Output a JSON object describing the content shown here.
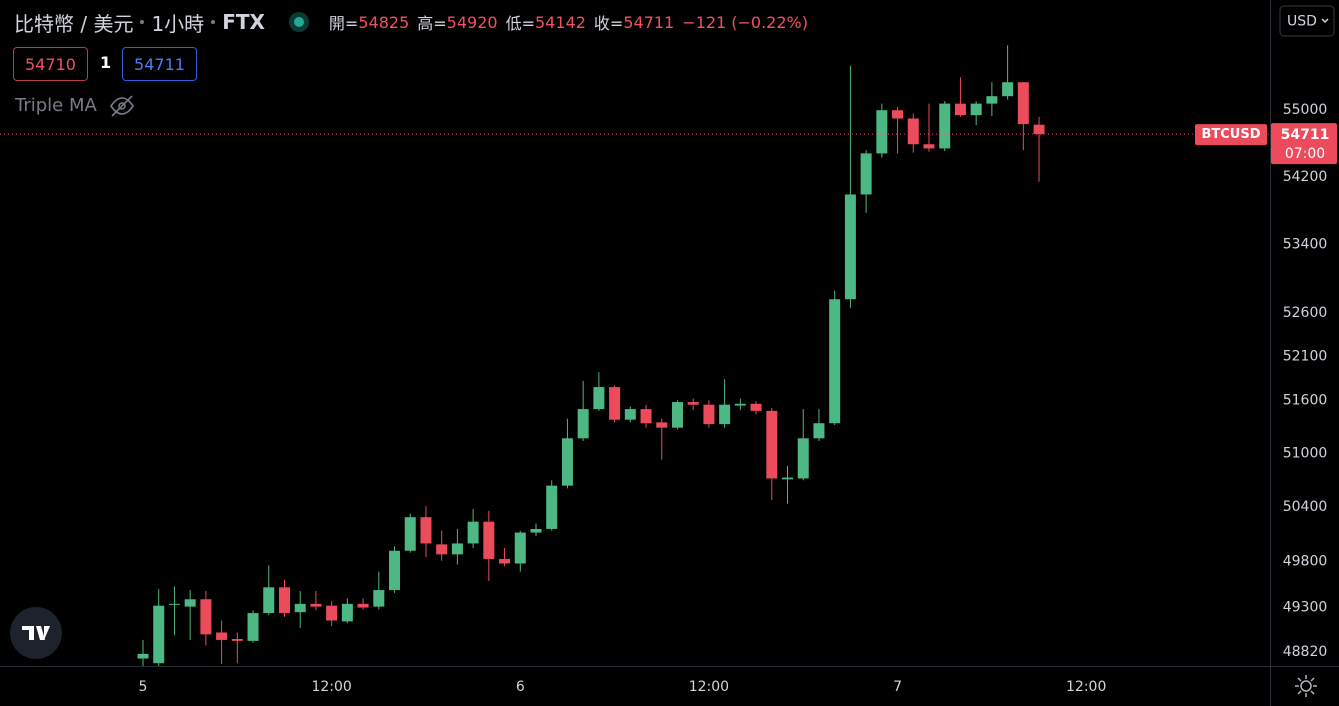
{
  "header": {
    "symbol": "比特幣 / 美元",
    "interval": "1小時",
    "exchange": "FTX",
    "open_label": "開=",
    "high_label": "高=",
    "low_label": "低=",
    "close_label": "收=",
    "change": "−121 (−0.22%)"
  },
  "order_bar": {
    "sell": "54710",
    "spread": "1",
    "buy": "54711"
  },
  "indicator": "Triple MA",
  "currency": "USD",
  "chart_data": {
    "type": "candlestick",
    "symbol": "BTCUSD",
    "countdown": "07:00",
    "log_scale": true,
    "grid": false,
    "up_color": "#4db883",
    "down_color": "#ec4b5c",
    "categories": [
      "5",
      null,
      null,
      null,
      null,
      null,
      null,
      null,
      null,
      null,
      null,
      null,
      "12:00",
      null,
      null,
      null,
      null,
      null,
      null,
      null,
      null,
      null,
      null,
      null,
      "6",
      null,
      null,
      null,
      null,
      null,
      null,
      null,
      null,
      null,
      null,
      null,
      "12:00",
      null,
      null,
      null,
      null,
      null,
      null,
      null,
      null,
      null,
      null,
      null,
      "7",
      null,
      null,
      null,
      null,
      null,
      null,
      null,
      null,
      null,
      null,
      null,
      "12:00",
      null,
      null,
      null,
      null,
      null,
      null,
      null,
      null,
      null,
      null,
      null
    ],
    "open": [
      48750,
      48700,
      49330,
      49310,
      49390,
      49030,
      48960,
      48940,
      49240,
      49520,
      49250,
      49340,
      49320,
      49150,
      49340,
      49310,
      49490,
      49920,
      50290,
      49990,
      49880,
      50000,
      50240,
      49830,
      49780,
      50120,
      50160,
      50640,
      51170,
      51500,
      51750,
      51380,
      51500,
      51350,
      51290,
      51580,
      51550,
      51330,
      51540,
      51560,
      51480,
      50710,
      50720,
      51170,
      51340,
      52760,
      53990,
      54480,
      55000,
      54900,
      54590,
      54540,
      55080,
      54940,
      55080,
      55170,
      55340,
      54825,
      null,
      null,
      null,
      null,
      null,
      null,
      null,
      null,
      null,
      null,
      null,
      null,
      null,
      null
    ],
    "high": [
      48950,
      49500,
      49530,
      49490,
      49480,
      49160,
      49030,
      49270,
      49760,
      49600,
      49480,
      49480,
      49370,
      49400,
      49400,
      49690,
      49970,
      50330,
      50410,
      50140,
      50160,
      50380,
      50360,
      49950,
      50140,
      50220,
      50700,
      51390,
      51820,
      51920,
      51770,
      51530,
      51550,
      51390,
      51600,
      51620,
      51600,
      51840,
      51620,
      51590,
      51510,
      50860,
      51500,
      51500,
      52860,
      55540,
      54520,
      55080,
      55040,
      54960,
      55080,
      55110,
      55400,
      55110,
      55340,
      55790,
      55340,
      54920,
      null,
      null,
      null,
      null,
      null,
      null,
      null,
      null,
      null,
      null,
      null,
      null,
      null,
      null
    ],
    "low": [
      48670,
      48650,
      49000,
      48950,
      48890,
      48690,
      48700,
      48920,
      49220,
      49200,
      49080,
      49270,
      49100,
      49130,
      49280,
      49280,
      49460,
      49900,
      49850,
      49810,
      49770,
      49950,
      49590,
      49750,
      49690,
      50080,
      50140,
      50610,
      51140,
      51480,
      51350,
      51350,
      51290,
      50930,
      51270,
      51490,
      51290,
      51290,
      51490,
      51440,
      50480,
      50440,
      50700,
      51140,
      51320,
      52660,
      53770,
      54430,
      54480,
      54490,
      54500,
      54510,
      54920,
      54820,
      54930,
      55130,
      54520,
      54142,
      null,
      null,
      null,
      null,
      null,
      null,
      null,
      null,
      null,
      null,
      null,
      null,
      null,
      null
    ],
    "close": [
      48800,
      49320,
      49340,
      49390,
      49010,
      48950,
      48940,
      49240,
      49520,
      49240,
      49340,
      49310,
      49160,
      49340,
      49300,
      49490,
      49920,
      50290,
      50000,
      49880,
      50000,
      50240,
      49830,
      49780,
      50120,
      50160,
      50640,
      51170,
      51500,
      51750,
      51380,
      51500,
      51340,
      51290,
      51580,
      51550,
      51330,
      51550,
      51560,
      51480,
      50720,
      50730,
      51170,
      51340,
      52760,
      53990,
      54480,
      55000,
      54900,
      54590,
      54540,
      55080,
      54940,
      55080,
      55170,
      55340,
      54832,
      54711,
      null,
      null,
      null,
      null,
      null,
      null,
      null,
      null,
      null,
      null,
      null,
      null,
      null,
      null
    ],
    "ylim": [
      48670,
      56350
    ],
    "yticks": [
      55000,
      54200,
      53400,
      52600,
      52100,
      51600,
      51000,
      50400,
      49800,
      49300,
      48820
    ]
  }
}
